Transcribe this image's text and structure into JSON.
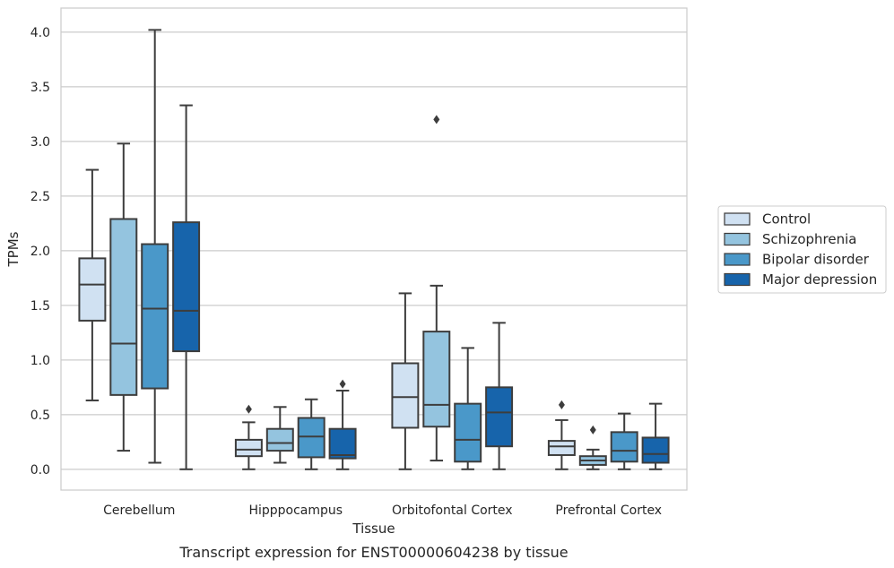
{
  "caption": "Transcript expression for ENST00000604238 by tissue",
  "chart_data": {
    "type": "box",
    "xlabel": "Tissue",
    "ylabel": "TPMs",
    "ylim": [
      -0.19,
      4.22
    ],
    "yticks": [
      "0.0",
      "0.5",
      "1.0",
      "1.5",
      "2.0",
      "2.5",
      "3.0",
      "3.5",
      "4.0"
    ],
    "grid": "horizontal",
    "legend_position": "outside-right",
    "categories": [
      "Cerebellum",
      "Hipppocampus",
      "Orbitofontal Cortex",
      "Prefrontal Cortex"
    ],
    "series": [
      {
        "name": "Control",
        "color": "#d0e1f2",
        "boxes": [
          {
            "whislo": 0.63,
            "q1": 1.36,
            "med": 1.69,
            "q3": 1.93,
            "whishi": 2.74,
            "fliers": []
          },
          {
            "whislo": 0.0,
            "q1": 0.12,
            "med": 0.18,
            "q3": 0.27,
            "whishi": 0.43,
            "fliers": [
              0.55
            ]
          },
          {
            "whislo": 0.0,
            "q1": 0.38,
            "med": 0.66,
            "q3": 0.97,
            "whishi": 1.61,
            "fliers": []
          },
          {
            "whislo": 0.0,
            "q1": 0.13,
            "med": 0.21,
            "q3": 0.26,
            "whishi": 0.45,
            "fliers": [
              0.59
            ]
          }
        ]
      },
      {
        "name": "Schizophrenia",
        "color": "#94c4df",
        "boxes": [
          {
            "whislo": 0.17,
            "q1": 0.68,
            "med": 1.15,
            "q3": 2.29,
            "whishi": 2.98,
            "fliers": []
          },
          {
            "whislo": 0.06,
            "q1": 0.17,
            "med": 0.24,
            "q3": 0.37,
            "whishi": 0.57,
            "fliers": []
          },
          {
            "whislo": 0.08,
            "q1": 0.39,
            "med": 0.59,
            "q3": 1.26,
            "whishi": 1.68,
            "fliers": [
              3.2
            ]
          },
          {
            "whislo": 0.0,
            "q1": 0.04,
            "med": 0.08,
            "q3": 0.12,
            "whishi": 0.18,
            "fliers": [
              0.36
            ]
          }
        ]
      },
      {
        "name": "Bipolar disorder",
        "color": "#4a98c9",
        "boxes": [
          {
            "whislo": 0.06,
            "q1": 0.74,
            "med": 1.47,
            "q3": 2.06,
            "whishi": 4.02,
            "fliers": []
          },
          {
            "whislo": 0.0,
            "q1": 0.11,
            "med": 0.3,
            "q3": 0.47,
            "whishi": 0.64,
            "fliers": []
          },
          {
            "whislo": 0.0,
            "q1": 0.07,
            "med": 0.27,
            "q3": 0.6,
            "whishi": 1.11,
            "fliers": []
          },
          {
            "whislo": 0.0,
            "q1": 0.07,
            "med": 0.17,
            "q3": 0.34,
            "whishi": 0.51,
            "fliers": []
          }
        ]
      },
      {
        "name": "Major depression",
        "color": "#1764ab",
        "boxes": [
          {
            "whislo": 0.0,
            "q1": 1.08,
            "med": 1.45,
            "q3": 2.26,
            "whishi": 3.33,
            "fliers": []
          },
          {
            "whislo": 0.0,
            "q1": 0.1,
            "med": 0.13,
            "q3": 0.37,
            "whishi": 0.72,
            "fliers": [
              0.78
            ]
          },
          {
            "whislo": 0.0,
            "q1": 0.21,
            "med": 0.52,
            "q3": 0.75,
            "whishi": 1.34,
            "fliers": []
          },
          {
            "whislo": 0.0,
            "q1": 0.06,
            "med": 0.14,
            "q3": 0.29,
            "whishi": 0.6,
            "fliers": []
          }
        ]
      }
    ]
  }
}
